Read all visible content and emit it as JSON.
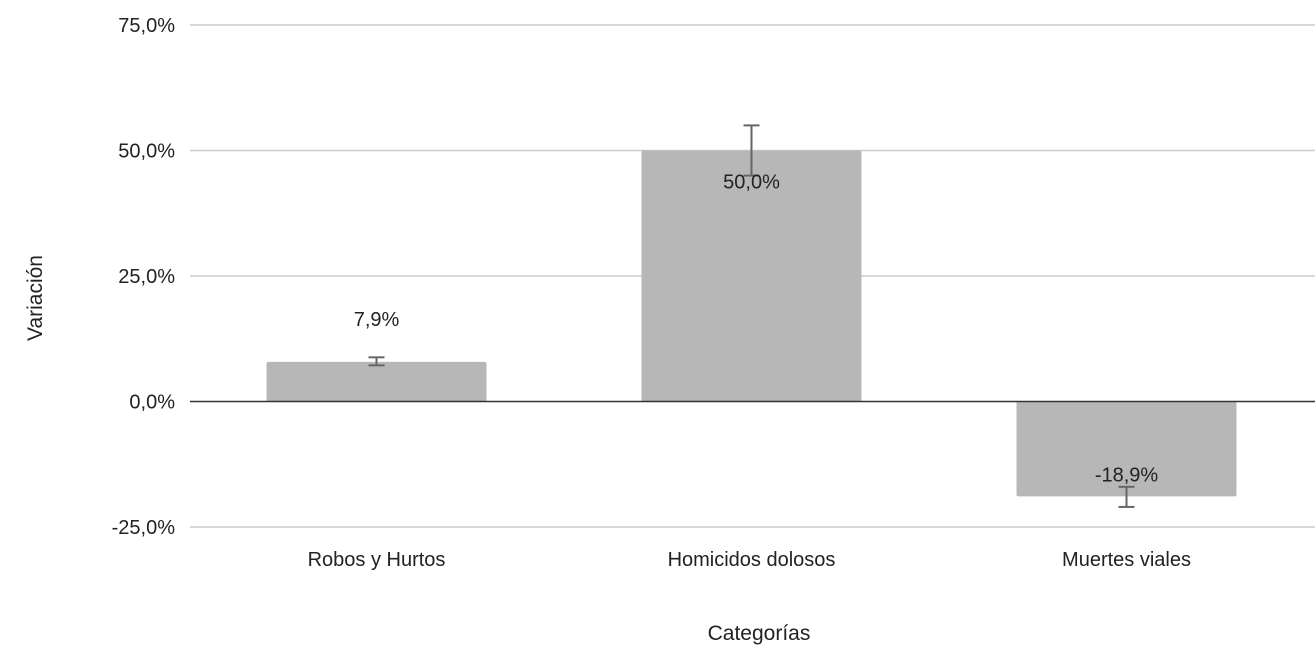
{
  "chart_data": {
    "type": "bar",
    "title": "",
    "xlabel": "Categorías",
    "ylabel": "Variación",
    "categories": [
      "Robos y Hurtos",
      "Homicidos dolosos",
      "Muertes viales"
    ],
    "values": [
      7.9,
      50.0,
      -18.9
    ],
    "data_labels": [
      "7,9%",
      "50,0%",
      "-18,9%"
    ],
    "error_bars": [
      {
        "low": 7.2,
        "high": 8.8
      },
      {
        "low": 45.0,
        "high": 55.0
      },
      {
        "low": -21.0,
        "high": -17.0
      }
    ],
    "ylim": [
      -25,
      75
    ],
    "yticks": [
      75,
      50,
      25,
      0,
      -25
    ],
    "ytick_labels": [
      "75,0%",
      "50,0%",
      "25,0%",
      "0,0%",
      "-25,0%"
    ],
    "grid": true,
    "legend": "none",
    "colors": {
      "bar": "#b7b7b7",
      "grid": "#cccccc",
      "zero_line": "#333333",
      "error_bar": "#666666"
    }
  }
}
